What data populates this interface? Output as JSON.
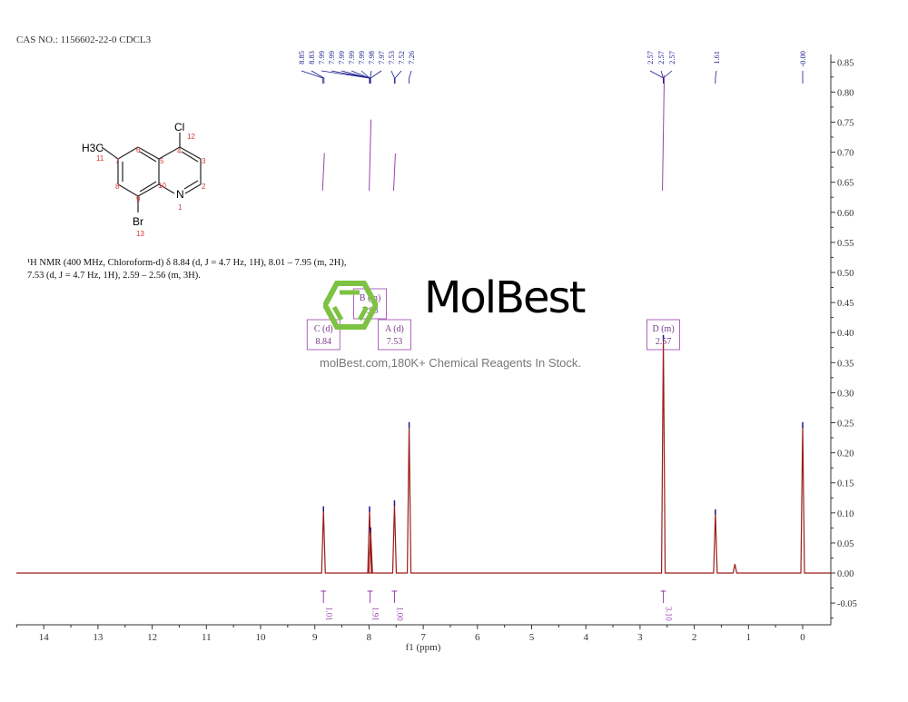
{
  "header": {
    "cas": "CAS NO.: 1156602-22-0 CDCL3"
  },
  "molecule": {
    "atoms": {
      "cl": "Cl",
      "br": "Br",
      "n": "N",
      "ch3": "H3C"
    },
    "numbers": [
      "1",
      "2",
      "3",
      "4",
      "5",
      "6",
      "7",
      "8",
      "9",
      "10",
      "11",
      "12",
      "13"
    ]
  },
  "nmr_description": {
    "line1": "¹H NMR (400 MHz, Chloroform-d) δ 8.84 (d, J = 4.7 Hz, 1H), 8.01 – 7.95 (m, 2H),",
    "line2": "7.53 (d, J = 4.7 Hz, 1H), 2.59 – 2.56 (m, 3H)."
  },
  "watermark": {
    "title": "MolBest",
    "subtitle": "molBest.com,180K+ Chemical Reagents In Stock.",
    "logo_color": "#7dc242"
  },
  "chart_data": {
    "type": "line",
    "title": "",
    "xlabel": "f1 (ppm)",
    "ylabel": "",
    "xlim": [
      14.5,
      -0.5
    ],
    "ylim": [
      -0.087,
      0.862
    ],
    "x_reversed": true,
    "grid": false,
    "x_ticks": [
      "14",
      "13",
      "12",
      "11",
      "10",
      "9",
      "8",
      "7",
      "6",
      "5",
      "4",
      "3",
      "2",
      "1",
      "0"
    ],
    "y_ticks": [
      "0.85",
      "0.80",
      "0.75",
      "0.70",
      "0.65",
      "0.60",
      "0.55",
      "0.50",
      "0.45",
      "0.40",
      "0.35",
      "0.30",
      "0.25",
      "0.20",
      "0.15",
      "0.10",
      "0.05",
      "0.00",
      "-0.05"
    ],
    "peaks": [
      {
        "ppm": 8.84,
        "height": 0.105
      },
      {
        "ppm": 7.99,
        "height": 0.105
      },
      {
        "ppm": 7.97,
        "height": 0.07
      },
      {
        "ppm": 7.53,
        "height": 0.115
      },
      {
        "ppm": 7.26,
        "height": 0.245
      },
      {
        "ppm": 2.57,
        "height": 0.39
      },
      {
        "ppm": 1.61,
        "height": 0.1
      },
      {
        "ppm": 1.25,
        "height": 0.015
      },
      {
        "ppm": 0.0,
        "height": 0.245
      }
    ],
    "peak_labels": [
      "8.85",
      "8.83",
      "7.99",
      "7.99",
      "7.99",
      "7.99",
      "7.99",
      "7.98",
      "7.97",
      "7.53",
      "7.52",
      "7.26",
      "2.57",
      "2.57",
      "2.57",
      "1.61",
      "-0.00"
    ],
    "multiplets": [
      {
        "letter": "C (d)",
        "shift": "8.84",
        "ppm": 8.84
      },
      {
        "letter": "B (m)",
        "shift": "7.98",
        "ppm": 7.98
      },
      {
        "letter": "A (d)",
        "shift": "7.53",
        "ppm": 7.53
      },
      {
        "letter": "D (m)",
        "shift": "2.57",
        "ppm": 2.57
      }
    ],
    "integrals": [
      {
        "ppm": 8.84,
        "value": "1.01"
      },
      {
        "ppm": 7.98,
        "value": "1.91"
      },
      {
        "ppm": 7.53,
        "value": "1.00"
      },
      {
        "ppm": 2.57,
        "value": "3.10"
      }
    ],
    "colors": {
      "spectrum": "#9b1c1c",
      "integral": "#9b40b0",
      "labels": "#1a1a8c",
      "axis": "#333333"
    }
  }
}
